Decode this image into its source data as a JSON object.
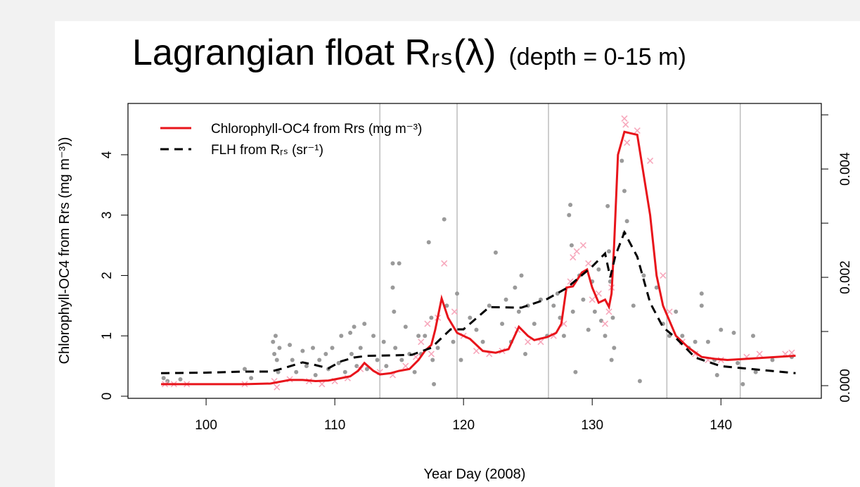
{
  "chart_data": {
    "type": "line",
    "title": "Lagrangian float Rᵣₛ(λ)",
    "title_note": "(depth = 0-15 m)",
    "x_label": "Year Day (2008)",
    "y_label": "Chlorophyll-OC4 from Rrs (mg m⁻³))",
    "xlim": [
      93.93,
      147.8
    ],
    "xticks": [
      100,
      110,
      120,
      130,
      140
    ],
    "ylim": [
      -0.035,
      4.85
    ],
    "yticks": [
      0,
      1,
      2,
      3,
      4
    ],
    "y2lim": [
      -0.000234,
      0.00521
    ],
    "y2ticks": [
      {
        "value": 0,
        "label": "0.000"
      },
      {
        "value": 0.002,
        "label": "0.002"
      },
      {
        "value": 0.004,
        "label": "0.004"
      }
    ],
    "y2minor_ticks": [
      0.001,
      0.003,
      0.005
    ],
    "grid_x": [
      113.5,
      119.5,
      126.6,
      135.8,
      141.5
    ],
    "legend": "top-left",
    "series": [
      {
        "name": "Chlorophyll-OC4 from Rrs (mg m⁻³)",
        "color": "#e8141b",
        "dash": false,
        "x": [
          96.5,
          100,
          103,
          105,
          105.5,
          106.5,
          107.5,
          108.5,
          109.5,
          110.5,
          111.2,
          111.8,
          112.3,
          113,
          113.5,
          114.3,
          115,
          115.8,
          116.5,
          117,
          117.5,
          117.8,
          118.3,
          118.8,
          119.5,
          120.5,
          121.5,
          122.5,
          123.5,
          124.3,
          125,
          125.5,
          126.5,
          127.2,
          127.6,
          128,
          128.5,
          129.2,
          129.6,
          130,
          130.5,
          131,
          131.3,
          131.5,
          131.7,
          132,
          132.5,
          133.5,
          134.5,
          135,
          135.5,
          136.5,
          137.5,
          138.5,
          139.5,
          140.5,
          142,
          145.8
        ],
        "values": [
          0.2,
          0.2,
          0.2,
          0.21,
          0.23,
          0.27,
          0.27,
          0.25,
          0.26,
          0.3,
          0.33,
          0.42,
          0.55,
          0.42,
          0.36,
          0.38,
          0.42,
          0.45,
          0.6,
          0.75,
          0.85,
          1.1,
          1.62,
          1.3,
          1.05,
          0.95,
          0.75,
          0.72,
          0.78,
          1.15,
          1.0,
          0.93,
          0.98,
          1.05,
          1.2,
          1.8,
          1.82,
          2.05,
          2.1,
          1.8,
          1.55,
          1.6,
          1.48,
          1.7,
          2.5,
          4.0,
          4.38,
          4.33,
          3.0,
          2.0,
          1.5,
          1.0,
          0.8,
          0.65,
          0.62,
          0.6,
          0.62,
          0.67
        ]
      },
      {
        "name": "FLH from Rᵣₛ (sr⁻¹)",
        "color": "#000000",
        "dash": true,
        "axis": "y2",
        "x": [
          96.5,
          100,
          103,
          105,
          106,
          107.5,
          108.5,
          109.5,
          110.5,
          111.5,
          112.5,
          114.6,
          116,
          117.5,
          119,
          120,
          122,
          124.5,
          126.5,
          128,
          130,
          131,
          131.4,
          131.8,
          132.5,
          133.5,
          134.5,
          135.5,
          136.5,
          138,
          140,
          145.8
        ],
        "values": [
          0.00023,
          0.00024,
          0.00026,
          0.00026,
          0.00032,
          0.00043,
          0.00038,
          0.00032,
          0.00045,
          0.00052,
          0.00055,
          0.00056,
          0.00057,
          0.0007,
          0.00104,
          0.00104,
          0.00145,
          0.00144,
          0.0016,
          0.0018,
          0.0022,
          0.00244,
          0.002,
          0.0024,
          0.00283,
          0.00238,
          0.00153,
          0.00108,
          0.00088,
          0.00052,
          0.00036,
          0.00023
        ]
      }
    ],
    "points": [
      {
        "color": "#9a9a9a",
        "marker": "dot",
        "x": [
          96.7,
          97,
          98,
          103,
          103.5,
          105.2,
          105.3,
          105.4,
          105.5,
          105.6,
          105.7,
          106.5,
          106.7,
          107,
          107.5,
          107.8,
          108.3,
          108.5,
          108.8,
          109.3,
          109.5,
          109.8,
          110.3,
          110.5,
          110.8,
          111.2,
          111.3,
          111.5,
          111.7,
          112,
          112.3,
          112.5,
          113,
          113.3,
          113.8,
          114,
          114.5,
          114.5,
          114.6,
          114.7,
          115,
          115.2,
          115.5,
          115.8,
          116.2,
          116.5,
          116.7,
          117,
          117.3,
          117.5,
          117.6,
          117.7,
          118,
          118.5,
          118.7,
          119.2,
          119.5,
          119.8,
          120.5,
          121,
          121.5,
          122,
          122.5,
          123,
          123.3,
          123.7,
          124,
          124.3,
          124.5,
          124.8,
          125,
          125.5,
          126,
          126.5,
          127,
          127.3,
          127.5,
          127.8,
          128.2,
          128.3,
          128.4,
          128.5,
          128.7,
          129,
          129.3,
          129.7,
          130,
          130.2,
          130.5,
          130.7,
          131,
          131.2,
          131.3,
          131.4,
          131.5,
          131.6,
          131.7,
          132.3,
          132.5,
          132.7,
          132.5,
          133.2,
          133.7,
          134,
          135,
          135.5,
          136,
          136.5,
          137,
          137.5,
          138,
          138.5,
          138.5,
          139,
          139.5,
          139.7,
          140,
          141,
          141.3,
          141.7,
          142.5,
          142.7,
          144,
          145.5
        ],
        "values": [
          0.3,
          0.25,
          0.28,
          0.45,
          0.3,
          0.9,
          0.7,
          1.0,
          0.6,
          0.4,
          0.8,
          0.85,
          0.6,
          0.4,
          0.75,
          0.5,
          0.8,
          0.35,
          0.6,
          0.7,
          0.45,
          0.8,
          0.55,
          1.0,
          0.4,
          1.05,
          0.7,
          1.15,
          0.5,
          0.8,
          1.2,
          0.45,
          1.0,
          0.6,
          0.9,
          0.5,
          2.2,
          1.8,
          1.4,
          0.8,
          2.2,
          0.6,
          1.15,
          0.7,
          0.4,
          1.0,
          0.7,
          1.0,
          2.55,
          1.3,
          0.6,
          0.2,
          0.8,
          2.93,
          1.5,
          0.9,
          1.7,
          0.6,
          1.3,
          1.1,
          0.9,
          1.5,
          2.38,
          1.2,
          1.6,
          0.9,
          1.8,
          1.4,
          2.0,
          0.7,
          1.5,
          1.2,
          1.6,
          1.0,
          1.5,
          1.7,
          1.3,
          1.0,
          3.0,
          3.17,
          2.5,
          1.4,
          0.4,
          2.0,
          1.6,
          1.1,
          1.9,
          1.4,
          2.1,
          1.25,
          1.0,
          3.15,
          2.4,
          1.9,
          0.6,
          1.3,
          0.8,
          3.9,
          3.4,
          2.9,
          2.7,
          1.5,
          0.25,
          2.0,
          1.8,
          1.2,
          1.0,
          1.4,
          1.0,
          0.8,
          0.9,
          1.7,
          1.5,
          0.9,
          0.6,
          0.35,
          1.1,
          1.05,
          0.55,
          0.2,
          1.0,
          0.4,
          0.6,
          0.65
        ]
      },
      {
        "color": "#f7a8bc",
        "marker": "cross",
        "x": [
          96.8,
          97.5,
          98.5,
          103,
          105.3,
          105.5,
          106.5,
          108,
          109,
          110,
          111,
          112,
          113.5,
          114.5,
          115.5,
          116.3,
          116.7,
          117.2,
          117.5,
          118,
          118.5,
          119.3,
          120,
          121,
          122,
          123,
          124.2,
          125,
          126,
          127,
          127.8,
          128.3,
          128.5,
          128.8,
          129.3,
          129.7,
          130,
          130.5,
          131,
          131.3,
          131.5,
          132.5,
          132.6,
          132.7,
          133.5,
          134.5,
          135.5,
          136,
          137,
          138,
          139,
          140,
          142,
          143,
          145,
          145.5
        ],
        "values": [
          0.2,
          0.2,
          0.2,
          0.2,
          0.25,
          0.15,
          0.28,
          0.25,
          0.2,
          0.25,
          0.3,
          0.45,
          0.4,
          0.35,
          0.5,
          0.65,
          0.9,
          1.2,
          0.7,
          1.3,
          2.2,
          1.4,
          1.0,
          0.75,
          0.7,
          0.75,
          1.1,
          0.9,
          0.9,
          1.0,
          1.2,
          1.9,
          2.3,
          2.4,
          2.5,
          2.2,
          1.6,
          1.7,
          1.2,
          1.4,
          1.8,
          4.6,
          4.5,
          4.2,
          4.4,
          3.9,
          2.0,
          1.4,
          0.9,
          0.7,
          0.6,
          0.6,
          0.65,
          0.7,
          0.7,
          0.72
        ]
      }
    ]
  }
}
